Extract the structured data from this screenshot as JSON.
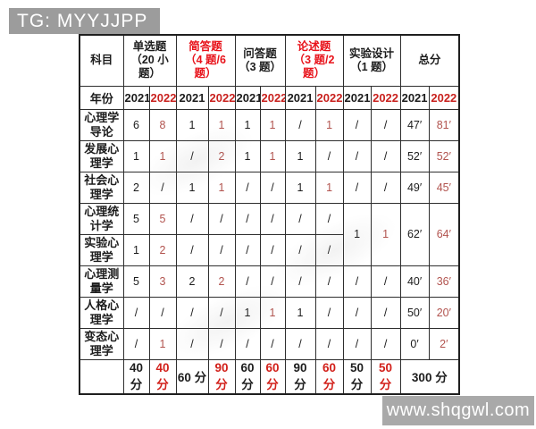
{
  "badge": {
    "text": "TG: MYYJJPP"
  },
  "footer": {
    "text": "www.shqgwl.com"
  },
  "colors": {
    "badge_bg": "#9c9c9c",
    "footer_bg": "#a9a9a9",
    "header_red": "#e8131b",
    "year_red": "#c9211e",
    "value_red": "#b2544f",
    "totals_red": "#d2201a",
    "grid": "#2e2e2e"
  },
  "table": {
    "corner_label": "科目",
    "year_row_label": "年份",
    "groups": [
      {
        "title": "单选题",
        "sub": "（20 小题）",
        "red": false
      },
      {
        "title": "简答题",
        "sub": "（4 题/6 题）",
        "red": true
      },
      {
        "title": "问答题",
        "sub": "（3 题）",
        "red": false
      },
      {
        "title": "论述题",
        "sub": "（3 题/2 题）",
        "red": true
      },
      {
        "title": "实验设计",
        "sub": "（1 题）",
        "red": false
      },
      {
        "title": "总分",
        "sub": "",
        "red": false
      }
    ],
    "years": [
      "2021",
      "2022",
      "2021",
      "2022",
      "2021",
      "2022",
      "2021",
      "2022",
      "2021",
      "2022",
      "2021",
      "2022"
    ],
    "rows": [
      {
        "subject": "心理学导论",
        "cells": [
          {
            "t": "6"
          },
          {
            "t": "8",
            "red": true
          },
          {
            "t": "1"
          },
          {
            "t": "1",
            "red": true
          },
          {
            "t": "1"
          },
          {
            "t": "1",
            "red": true
          },
          {
            "t": "/"
          },
          {
            "t": "1",
            "red": true
          },
          {
            "t": "/"
          },
          {
            "t": "/"
          },
          {
            "t": "47′"
          },
          {
            "t": "81′",
            "red": true
          }
        ]
      },
      {
        "subject": "发展心理学",
        "cells": [
          {
            "t": "1"
          },
          {
            "t": "1",
            "red": true
          },
          {
            "t": "/"
          },
          {
            "t": "2",
            "red": true
          },
          {
            "t": "1"
          },
          {
            "t": "1",
            "red": true
          },
          {
            "t": "1"
          },
          {
            "t": "/"
          },
          {
            "t": "/"
          },
          {
            "t": "/"
          },
          {
            "t": "52′"
          },
          {
            "t": "52′",
            "red": true
          }
        ]
      },
      {
        "subject": "社会心理学",
        "cells": [
          {
            "t": "2"
          },
          {
            "t": "/"
          },
          {
            "t": "1"
          },
          {
            "t": "1",
            "red": true
          },
          {
            "t": "/"
          },
          {
            "t": "/"
          },
          {
            "t": "1"
          },
          {
            "t": "1",
            "red": true
          },
          {
            "t": "/"
          },
          {
            "t": "/"
          },
          {
            "t": "49′"
          },
          {
            "t": "45′",
            "red": true
          }
        ]
      },
      {
        "subject": "心理统计学",
        "cells": [
          {
            "t": "5"
          },
          {
            "t": "5",
            "red": true
          },
          {
            "t": "/"
          },
          {
            "t": "/"
          },
          {
            "t": "/"
          },
          {
            "t": "/"
          },
          {
            "t": "/"
          },
          {
            "t": "/"
          },
          {
            "t": "1",
            "rowspan": 2
          },
          {
            "t": "1",
            "red": true,
            "rowspan": 2
          },
          {
            "t": "62′",
            "rowspan": 2
          },
          {
            "t": "64′",
            "red": true,
            "rowspan": 2
          }
        ]
      },
      {
        "subject": "实验心理学",
        "cells": [
          {
            "t": "1"
          },
          {
            "t": "2",
            "red": true
          },
          {
            "t": "/"
          },
          {
            "t": "/"
          },
          {
            "t": "/"
          },
          {
            "t": "/"
          },
          {
            "t": "/"
          },
          {
            "t": "/"
          }
        ]
      },
      {
        "subject": "心理测量学",
        "cells": [
          {
            "t": "5"
          },
          {
            "t": "3",
            "red": true
          },
          {
            "t": "2"
          },
          {
            "t": "2",
            "red": true
          },
          {
            "t": "/"
          },
          {
            "t": "/"
          },
          {
            "t": "/"
          },
          {
            "t": "/"
          },
          {
            "t": "/"
          },
          {
            "t": "/"
          },
          {
            "t": "40′"
          },
          {
            "t": "36′",
            "red": true
          }
        ]
      },
      {
        "subject": "人格心理学",
        "cells": [
          {
            "t": "/"
          },
          {
            "t": "/"
          },
          {
            "t": "/"
          },
          {
            "t": "/"
          },
          {
            "t": "1"
          },
          {
            "t": "1",
            "red": true
          },
          {
            "t": "1"
          },
          {
            "t": "/"
          },
          {
            "t": "/"
          },
          {
            "t": "/"
          },
          {
            "t": "50′"
          },
          {
            "t": "20′",
            "red": true
          }
        ]
      },
      {
        "subject": "变态心理学",
        "cells": [
          {
            "t": "/"
          },
          {
            "t": "1",
            "red": true
          },
          {
            "t": "/"
          },
          {
            "t": "/"
          },
          {
            "t": "/"
          },
          {
            "t": "/"
          },
          {
            "t": "/"
          },
          {
            "t": "/"
          },
          {
            "t": "/"
          },
          {
            "t": "/"
          },
          {
            "t": "0′"
          },
          {
            "t": "2′",
            "red": true
          }
        ]
      }
    ],
    "totals": {
      "label": "",
      "cells": [
        {
          "t": "40 分"
        },
        {
          "t": "40 分",
          "red": true
        },
        {
          "t": "60 分"
        },
        {
          "t": "90 分",
          "red": true
        },
        {
          "t": "60 分"
        },
        {
          "t": "60 分",
          "red": true
        },
        {
          "t": "90 分"
        },
        {
          "t": "60 分",
          "red": true
        },
        {
          "t": "50 分"
        },
        {
          "t": "50 分",
          "red": true
        },
        {
          "t": "300 分",
          "colspan": 2
        }
      ]
    }
  }
}
